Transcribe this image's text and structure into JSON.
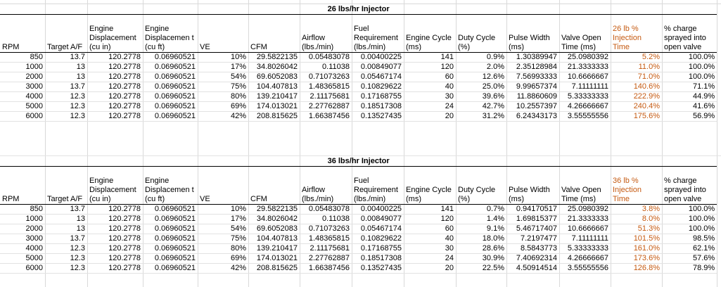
{
  "columns": [
    "RPM",
    "Target A/F",
    "Engine Displacement (cu in)",
    "Engine Displacemen t (cu ft)",
    "VE",
    "CFM",
    "Airflow (lbs./min)",
    "Fuel Requirement (lbs./min)",
    "Engine Cycle (ms)",
    "Duty Cycle (%)",
    "Pulse Width (ms)",
    "Valve Open Time (ms)",
    "INJ_PCT",
    "% charge sprayed into open valve"
  ],
  "tables": [
    {
      "title": "26 lbs/hr Injector",
      "inj_header": "26 lb % Injection Time",
      "rows": [
        [
          "850",
          "13.7",
          "120.2778",
          "0.06960521",
          "10%",
          "29.5822135",
          "0.05483078",
          "0.00400225",
          "141",
          "0.9%",
          "1.30389947",
          "25.0980392",
          "5.2%",
          "100.0%"
        ],
        [
          "1000",
          "13",
          "120.2778",
          "0.06960521",
          "17%",
          "34.8026042",
          "0.11038",
          "0.00849077",
          "120",
          "2.0%",
          "2.35128984",
          "21.3333333",
          "11.0%",
          "100.0%"
        ],
        [
          "2000",
          "13",
          "120.2778",
          "0.06960521",
          "54%",
          "69.6052083",
          "0.71073263",
          "0.05467174",
          "60",
          "12.6%",
          "7.56993333",
          "10.6666667",
          "71.0%",
          "100.0%"
        ],
        [
          "3000",
          "13.7",
          "120.2778",
          "0.06960521",
          "75%",
          "104.407813",
          "1.48365815",
          "0.10829622",
          "40",
          "25.0%",
          "9.99657374",
          "7.11111111",
          "140.6%",
          "71.1%"
        ],
        [
          "4000",
          "12.3",
          "120.2778",
          "0.06960521",
          "80%",
          "139.210417",
          "2.11175681",
          "0.17168755",
          "30",
          "39.6%",
          "11.8860609",
          "5.33333333",
          "222.9%",
          "44.9%"
        ],
        [
          "5000",
          "12.3",
          "120.2778",
          "0.06960521",
          "69%",
          "174.013021",
          "2.27762887",
          "0.18517308",
          "24",
          "42.7%",
          "10.2557397",
          "4.26666667",
          "240.4%",
          "41.6%"
        ],
        [
          "6000",
          "12.3",
          "120.2778",
          "0.06960521",
          "42%",
          "208.815625",
          "1.66387456",
          "0.13527435",
          "20",
          "31.2%",
          "6.24343173",
          "3.55555556",
          "175.6%",
          "56.9%"
        ]
      ]
    },
    {
      "title": "36 lbs/hr Injector",
      "inj_header": "36 lb % Injection Time",
      "rows": [
        [
          "850",
          "13.7",
          "120.2778",
          "0.06960521",
          "10%",
          "29.5822135",
          "0.05483078",
          "0.00400225",
          "141",
          "0.7%",
          "0.94170517",
          "25.0980392",
          "3.8%",
          "100.0%"
        ],
        [
          "1000",
          "13",
          "120.2778",
          "0.06960521",
          "17%",
          "34.8026042",
          "0.11038",
          "0.00849077",
          "120",
          "1.4%",
          "1.69815377",
          "21.3333333",
          "8.0%",
          "100.0%"
        ],
        [
          "2000",
          "13",
          "120.2778",
          "0.06960521",
          "54%",
          "69.6052083",
          "0.71073263",
          "0.05467174",
          "60",
          "9.1%",
          "5.46717407",
          "10.6666667",
          "51.3%",
          "100.0%"
        ],
        [
          "3000",
          "13.7",
          "120.2778",
          "0.06960521",
          "75%",
          "104.407813",
          "1.48365815",
          "0.10829622",
          "40",
          "18.0%",
          "7.2197477",
          "7.11111111",
          "101.5%",
          "98.5%"
        ],
        [
          "4000",
          "12.3",
          "120.2778",
          "0.06960521",
          "80%",
          "139.210417",
          "2.11175681",
          "0.17168755",
          "30",
          "28.6%",
          "8.5843773",
          "5.33333333",
          "161.0%",
          "62.1%"
        ],
        [
          "5000",
          "12.3",
          "120.2778",
          "0.06960521",
          "69%",
          "174.013021",
          "2.27762887",
          "0.18517308",
          "24",
          "30.9%",
          "7.40692314",
          "4.26666667",
          "173.6%",
          "57.6%"
        ],
        [
          "6000",
          "12.3",
          "120.2778",
          "0.06960521",
          "42%",
          "208.815625",
          "1.66387456",
          "0.13527435",
          "20",
          "22.5%",
          "4.50914514",
          "3.55555556",
          "126.8%",
          "78.9%"
        ]
      ]
    }
  ],
  "colors": {
    "accent_orange": "#c55a11",
    "gridline": "#d9d9d9"
  }
}
